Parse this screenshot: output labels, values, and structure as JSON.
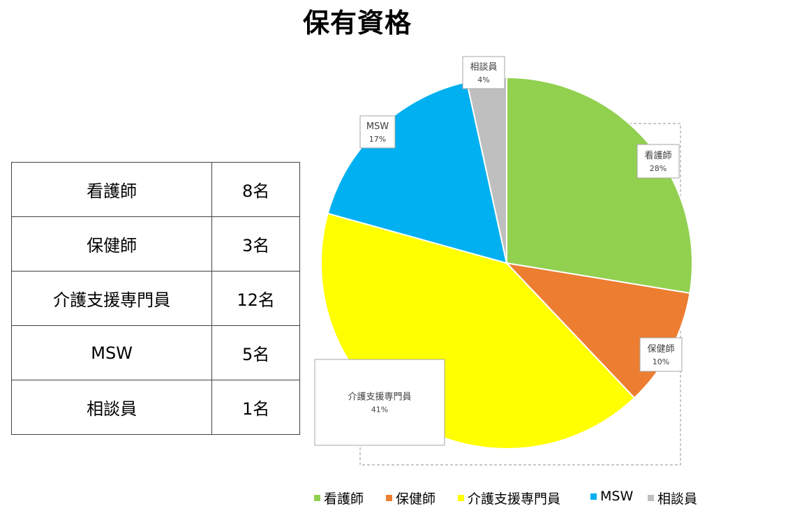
{
  "title": "保有資格",
  "table": {
    "rows": [
      {
        "name": "看護師",
        "count": "8名"
      },
      {
        "name": "保健師",
        "count": "3名"
      },
      {
        "name": "介護支援専門員",
        "count": "12名"
      },
      {
        "name": "MSW",
        "count": "5名"
      },
      {
        "name": "相談員",
        "count": "1名"
      }
    ]
  },
  "chart_data": {
    "type": "pie",
    "title": "保有資格",
    "categories": [
      "看護師",
      "保健師",
      "介護支援専門員",
      "MSW",
      "相談員"
    ],
    "values": [
      8,
      3,
      12,
      5,
      1
    ],
    "percent_labels": [
      "28%",
      "10%",
      "41%",
      "17%",
      "4%"
    ],
    "colors": [
      "#92d050",
      "#ed7d31",
      "#ffff00",
      "#00b0f0",
      "#bfbfbf"
    ],
    "start": "12 o'clock, clockwise",
    "legend_position": "bottom"
  }
}
